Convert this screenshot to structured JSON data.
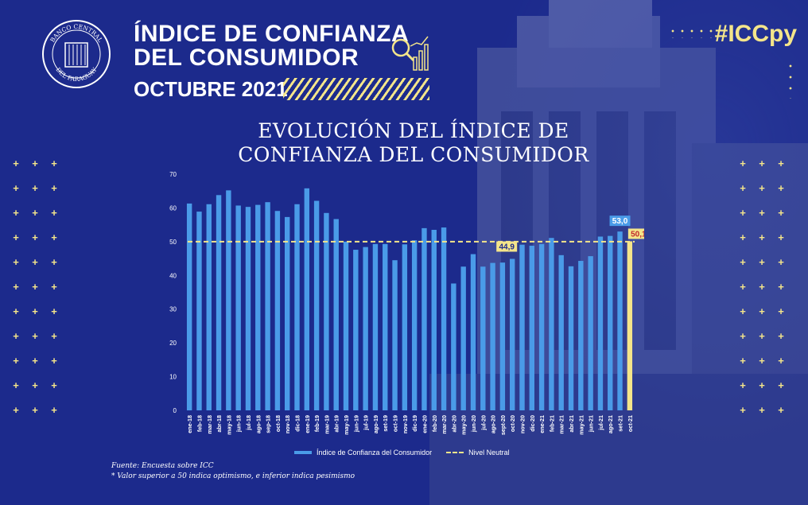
{
  "header": {
    "title_line1": "ÍNDICE DE CONFIANZA",
    "title_line2": "DEL CONSUMIDOR",
    "month": "OCTUBRE 2021",
    "hashtag": "#ICCpy",
    "logo_text_top": "BANCO CENTRAL",
    "logo_text_bottom": "DEL PARAGUAY"
  },
  "colors": {
    "background": "#1c2a8c",
    "bar": "#4a9be8",
    "accent_yellow": "#f4e58a",
    "highlight_red_text": "#c0262d"
  },
  "chart_title_line1": "EVOLUCIÓN DEL ÍNDICE DE",
  "chart_title_line2": "CONFIANZA DEL CONSUMIDOR",
  "legend": {
    "series_label": "Índice de Confianza del Consumidor",
    "neutral_label": "Nivel Neutral"
  },
  "footnotes": {
    "source": "Fuente: Encuesta  sobre ICC",
    "note": "* Valor superior a 50 indica optimismo, e inferior indica pesimismo"
  },
  "chart_data": {
    "type": "bar",
    "title": "EVOLUCIÓN DEL ÍNDICE DE CONFIANZA DEL CONSUMIDOR",
    "ylim": [
      0,
      70
    ],
    "yticks": [
      0,
      10,
      20,
      30,
      40,
      50,
      60,
      70
    ],
    "grid": false,
    "legend_position": "bottom",
    "categories": [
      "ene-18",
      "feb-18",
      "mar-18",
      "abr-18",
      "may-18",
      "jun-18",
      "jul-18",
      "ago-18",
      "sep-18",
      "oct-18",
      "nov-18",
      "dic-18",
      "ene-19",
      "feb-19",
      "mar-19",
      "abr-19",
      "may-19",
      "jun-19",
      "jul-19",
      "ago-19",
      "set-19",
      "oct-19",
      "nov-19",
      "dic-19",
      "ene-20",
      "feb-20",
      "mar-20",
      "abr-20",
      "may-20",
      "jun-20",
      "jul-20",
      "ago-20",
      "sept-20",
      "oct-20",
      "nov-20",
      "dic-20",
      "ene-21",
      "feb-21",
      "mar-21",
      "abr-21",
      "may-21",
      "jun-21",
      "jul-21",
      "ago-21",
      "set-21",
      "oct-21"
    ],
    "series": [
      {
        "name": "Índice de Confianza del Consumidor",
        "values": [
          61.3,
          58.9,
          61.1,
          63.8,
          65.2,
          60.7,
          60.3,
          60.9,
          61.7,
          59.1,
          57.3,
          61.1,
          65.8,
          62.1,
          58.5,
          56.7,
          50.0,
          47.6,
          48.4,
          49.3,
          49.3,
          44.5,
          49.2,
          50.4,
          54.0,
          53.5,
          54.2,
          37.6,
          42.6,
          46.3,
          42.6,
          43.7,
          43.8,
          44.9,
          49.1,
          48.8,
          49.3,
          51.1,
          46.0,
          42.7,
          44.3,
          45.7,
          51.5,
          51.7,
          53.0,
          50.1
        ]
      }
    ],
    "neutral_line": {
      "name": "Nivel Neutral",
      "value": 50
    },
    "data_labels": [
      {
        "category": "oct-20",
        "text": "44,9"
      },
      {
        "category": "set-21",
        "text": "53,0"
      },
      {
        "category": "oct-21",
        "text": "50,1"
      }
    ]
  }
}
